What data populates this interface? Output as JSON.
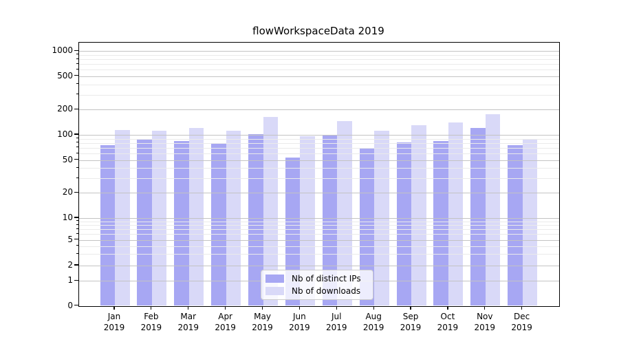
{
  "title": "flowWorkspaceData 2019",
  "chart_data": {
    "type": "bar",
    "title": "flowWorkspaceData 2019",
    "x_months": [
      "Jan",
      "Feb",
      "Mar",
      "Apr",
      "May",
      "Jun",
      "Jul",
      "Aug",
      "Sep",
      "Oct",
      "Nov",
      "Dec"
    ],
    "x_year": "2019",
    "series": [
      {
        "name": "Nb of distinct IPs",
        "color": "#a7a7f3",
        "values": [
          76,
          89,
          85,
          78,
          102,
          54,
          98,
          70,
          82,
          84,
          121,
          76
        ]
      },
      {
        "name": "Nb of downloads",
        "color": "#d9d9f8",
        "values": [
          114,
          112,
          122,
          113,
          163,
          97,
          145,
          112,
          130,
          141,
          175,
          90
        ]
      }
    ],
    "y_axis": {
      "scale": "symlog",
      "major_ticks": [
        0,
        1,
        2,
        5,
        10,
        20,
        50,
        100,
        200,
        500,
        1000
      ],
      "minor_ticks": [
        3,
        4,
        6,
        7,
        8,
        9,
        30,
        40,
        60,
        70,
        80,
        90,
        300,
        400,
        600,
        700,
        800,
        900
      ]
    },
    "grid": {
      "major_color": "#c3c3c3",
      "minor_color": "#eaeaea",
      "drawn_above_bars": true
    },
    "legend": {
      "position": "lower center",
      "entries": [
        "Nb of distinct IPs",
        "Nb of downloads"
      ]
    }
  }
}
